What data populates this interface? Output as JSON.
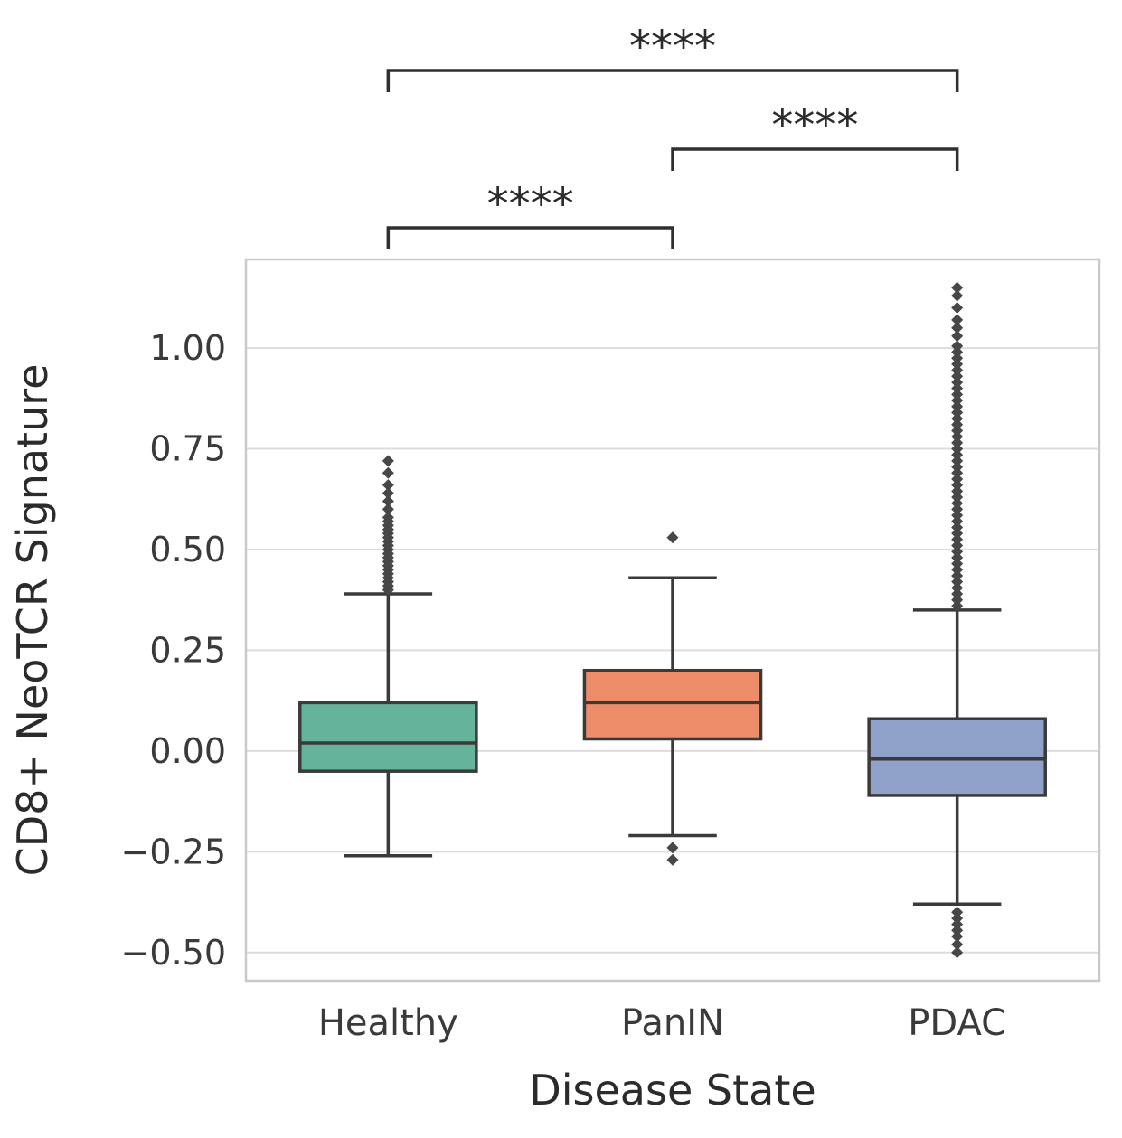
{
  "chart_data": {
    "type": "box",
    "title": "",
    "xlabel": "Disease State",
    "ylabel": "CD8+ NeoTCR Signature",
    "ylim": [
      -0.57,
      1.22
    ],
    "yticks": [
      1.0,
      0.75,
      0.5,
      0.25,
      0.0,
      -0.25,
      -0.5
    ],
    "grid": "horizontal",
    "legend": "none",
    "categories": [
      "Healthy",
      "PanIN",
      "PDAC"
    ],
    "boxes": [
      {
        "category": "Healthy",
        "color": "#66b39b",
        "q1": -0.05,
        "median": 0.02,
        "q3": 0.12,
        "whisker_low": -0.26,
        "whisker_high": 0.39,
        "outliers": [
          0.4,
          0.41,
          0.42,
          0.43,
          0.44,
          0.45,
          0.46,
          0.47,
          0.48,
          0.49,
          0.5,
          0.51,
          0.52,
          0.53,
          0.54,
          0.55,
          0.56,
          0.57,
          0.58,
          0.6,
          0.62,
          0.64,
          0.66,
          0.69,
          0.72
        ]
      },
      {
        "category": "PanIN",
        "color": "#ec8c69",
        "q1": 0.03,
        "median": 0.12,
        "q3": 0.2,
        "whisker_low": -0.21,
        "whisker_high": 0.43,
        "outliers": [
          0.53,
          -0.24,
          -0.27
        ]
      },
      {
        "category": "PDAC",
        "color": "#8fa0c9",
        "q1": -0.11,
        "median": -0.02,
        "q3": 0.08,
        "whisker_low": -0.38,
        "whisker_high": 0.35,
        "outliers": [
          0.36,
          0.375,
          0.39,
          0.405,
          0.42,
          0.435,
          0.45,
          0.465,
          0.48,
          0.495,
          0.51,
          0.525,
          0.54,
          0.555,
          0.57,
          0.585,
          0.6,
          0.615,
          0.63,
          0.645,
          0.66,
          0.675,
          0.69,
          0.705,
          0.72,
          0.735,
          0.75,
          0.765,
          0.78,
          0.795,
          0.81,
          0.825,
          0.84,
          0.855,
          0.87,
          0.885,
          0.9,
          0.915,
          0.93,
          0.945,
          0.96,
          0.975,
          0.99,
          1.005,
          1.03,
          1.05,
          1.07,
          1.1,
          1.13,
          1.15,
          -0.4,
          -0.415,
          -0.43,
          -0.445,
          -0.46,
          -0.48,
          -0.5
        ]
      }
    ],
    "significance": [
      {
        "group1": "Healthy",
        "group2": "PanIN",
        "label": "****",
        "level": 1
      },
      {
        "group1": "PanIN",
        "group2": "PDAC",
        "label": "****",
        "level": 2
      },
      {
        "group1": "Healthy",
        "group2": "PDAC",
        "label": "****",
        "level": 3
      }
    ],
    "colors": {
      "box_edge": "#3a3a3a",
      "grid_line": "#dcdcdc",
      "frame": "#c9c9c9",
      "outlier": "#474747",
      "text": "#2b2b2b"
    }
  }
}
